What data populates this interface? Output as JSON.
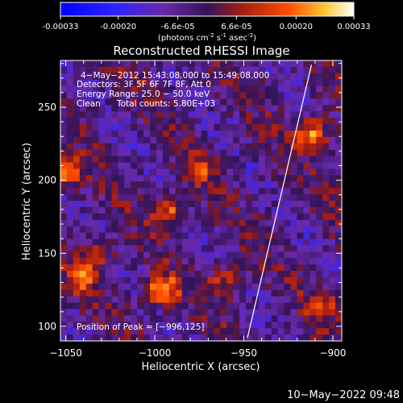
{
  "colorbar": {
    "ticks": [
      "-0.00033",
      "-0.00020",
      "-6.6e-05",
      "6.6e-05",
      "0.00020",
      "0.00033"
    ],
    "unit_main": "(photons cm",
    "unit_exp1": "-2",
    "unit_mid": " s",
    "unit_exp2": "-1",
    "unit_end": " asec",
    "unit_exp3": "-2",
    "unit_close": ")"
  },
  "chart_data": {
    "type": "heatmap",
    "title": "Reconstructed RHESSI Image",
    "xlabel": "Heliocentric X (arcsec)",
    "ylabel": "Heliocentric Y (arcsec)",
    "xlim": [
      -1053,
      -895
    ],
    "ylim": [
      90,
      282
    ],
    "x_ticks": [
      -1050,
      -1000,
      -950,
      -900
    ],
    "y_ticks": [
      100,
      150,
      200,
      250
    ],
    "x_tick_labels": [
      "−1050",
      "−1000",
      "−950",
      "−900"
    ],
    "y_tick_labels": [
      "100",
      "150",
      "200",
      "250"
    ],
    "limb_line": [
      [
        -948,
        92
      ],
      [
        -912,
        279
      ]
    ],
    "peaks": [
      {
        "x": -996,
        "y": 125,
        "value": 0.00033
      },
      {
        "x": -1041,
        "y": 134,
        "value": 0.00025
      },
      {
        "x": -991,
        "y": 178,
        "value": 0.00024
      },
      {
        "x": -912,
        "y": 232,
        "value": 0.00029
      },
      {
        "x": -1050,
        "y": 205,
        "value": 0.00027
      },
      {
        "x": -960,
        "y": 130,
        "value": 0.00018
      },
      {
        "x": -905,
        "y": 115,
        "value": 0.00018
      },
      {
        "x": -1030,
        "y": 150,
        "value": 0.00015
      },
      {
        "x": -975,
        "y": 208,
        "value": 0.00014
      }
    ],
    "colormap": "rhessi-blue-purple-red-yellow-white",
    "colorbar_range": [
      -0.00033,
      0.00033
    ],
    "colorbar_ticks": [
      -0.00033,
      -0.0002,
      -6.6e-05,
      6.6e-05,
      0.0002,
      0.00033
    ]
  },
  "annotations": {
    "line1": "4−May−2012 15:43:08.000 to 15:49:08.000",
    "line2": "Detectors: 3F 5F 6F 7F 8F, Att 0",
    "line3": "Energy Range: 25.0 − 50.0 keV",
    "line4_left": "Clean",
    "line4_right": "Total counts: 5.80E+03",
    "peak_label": "Position of Peak = [−996,125]"
  },
  "footer": {
    "timestamp": "10−May−2022 09:48"
  }
}
